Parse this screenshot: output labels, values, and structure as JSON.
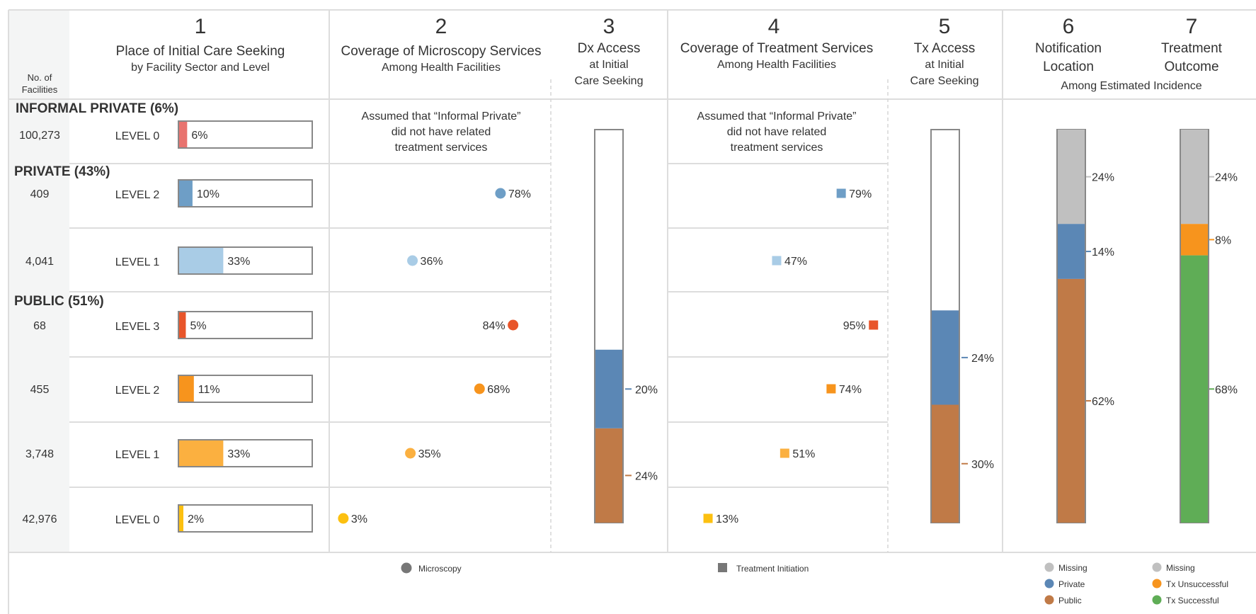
{
  "panels": [
    {
      "num": "1",
      "title": "Place of Initial Care Seeking",
      "subtitle": "by Facility Sector and Level"
    },
    {
      "num": "2",
      "title": "Coverage of Microscopy Services",
      "subtitle": "Among Health Facilities"
    },
    {
      "num": "3",
      "title": "Dx Access",
      "sub1": "at Initial",
      "sub2": "Care Seeking"
    },
    {
      "num": "4",
      "title": "Coverage of Treatment Services",
      "subtitle": "Among Health Facilities"
    },
    {
      "num": "5",
      "title": "Tx Access",
      "sub1": "at Initial",
      "sub2": "Care Seeking"
    },
    {
      "num": "6",
      "title": "Notification",
      "title2": "Location"
    },
    {
      "num": "7",
      "title": "Treatment",
      "title2": "Outcome"
    }
  ],
  "panel67_subtitle": "Among Estimated Incidence",
  "facilities_header": [
    "No. of",
    "Facilities"
  ],
  "informal_note": [
    "Assumed that “Informal Private”",
    "did not have related",
    "treatment services"
  ],
  "colors": {
    "informal": "#e8736f",
    "private_l2": "#6e9ec6",
    "private_l1": "#a9cce6",
    "public_l3": "#e8552a",
    "public_l2": "#f7941d",
    "public_l1": "#fbb040",
    "public_l0": "#fcc010",
    "private_bar": "#5b87b5",
    "public_bar": "#c07a47",
    "missing": "#c0c0c0",
    "tx_unsuccessful": "#f7941d",
    "tx_successful": "#5fad56",
    "sector_informal": "#e8736f",
    "sector_private": "#6e9ec6",
    "sector_public": "#f05a28"
  },
  "chart_data": [
    {
      "type": "bar",
      "title": "Place of Initial Care Seeking",
      "subtitle": "by Facility Sector and Level",
      "sectors": [
        {
          "label": "INFORMAL PRIVATE (6%)",
          "rows": [
            {
              "facilities": "100,273",
              "level": "LEVEL 0",
              "value": 6,
              "label": "6%"
            }
          ]
        },
        {
          "label": "PRIVATE (43%)",
          "rows": [
            {
              "facilities": "409",
              "level": "LEVEL 2",
              "value": 10,
              "label": "10%"
            },
            {
              "facilities": "4,041",
              "level": "LEVEL 1",
              "value": 33,
              "label": "33%"
            }
          ]
        },
        {
          "label": "PUBLIC (51%)",
          "rows": [
            {
              "facilities": "68",
              "level": "LEVEL 3",
              "value": 5,
              "label": "5%"
            },
            {
              "facilities": "455",
              "level": "LEVEL 2",
              "value": 11,
              "label": "11%"
            },
            {
              "facilities": "3,748",
              "level": "LEVEL 1",
              "value": 33,
              "label": "33%"
            },
            {
              "facilities": "42,976",
              "level": "LEVEL 0",
              "value": 2,
              "label": "2%"
            }
          ]
        }
      ]
    },
    {
      "type": "scatter",
      "title": "Coverage of Microscopy Services",
      "legend": "Microscopy",
      "values": [
        78,
        36,
        84,
        68,
        35,
        3
      ],
      "labels": [
        "78%",
        "36%",
        "84%",
        "68%",
        "35%",
        "3%"
      ]
    },
    {
      "type": "bar",
      "title": "Dx Access",
      "segments": [
        {
          "name": "Private",
          "value": 20,
          "label": "20%"
        },
        {
          "name": "Public",
          "value": 24,
          "label": "24%"
        }
      ]
    },
    {
      "type": "scatter",
      "title": "Coverage of Treatment Services",
      "legend": "Treatment Initiation",
      "values": [
        79,
        47,
        95,
        74,
        51,
        13
      ],
      "labels": [
        "79%",
        "47%",
        "95%",
        "74%",
        "51%",
        "13%"
      ]
    },
    {
      "type": "bar",
      "title": "Tx Access",
      "segments": [
        {
          "name": "Private",
          "value": 24,
          "label": "24%"
        },
        {
          "name": "Public",
          "value": 30,
          "label": "30%"
        }
      ]
    },
    {
      "type": "bar",
      "title": "Notification Location",
      "segments": [
        {
          "name": "Missing",
          "value": 24,
          "label": "24%"
        },
        {
          "name": "Private",
          "value": 14,
          "label": "14%"
        },
        {
          "name": "Public",
          "value": 62,
          "label": "62%"
        }
      ]
    },
    {
      "type": "bar",
      "title": "Treatment Outcome",
      "segments": [
        {
          "name": "Missing",
          "value": 24,
          "label": "24%"
        },
        {
          "name": "Tx Unsuccessful",
          "value": 8,
          "label": "8%"
        },
        {
          "name": "Tx Successful",
          "value": 68,
          "label": "68%"
        }
      ]
    }
  ],
  "legend": {
    "microscopy": "Microscopy",
    "treatment": "Treatment Initiation",
    "notification": [
      "Missing",
      "Private",
      "Public"
    ],
    "outcome": [
      "Missing",
      "Tx Unsuccessful",
      "Tx Successful"
    ]
  }
}
